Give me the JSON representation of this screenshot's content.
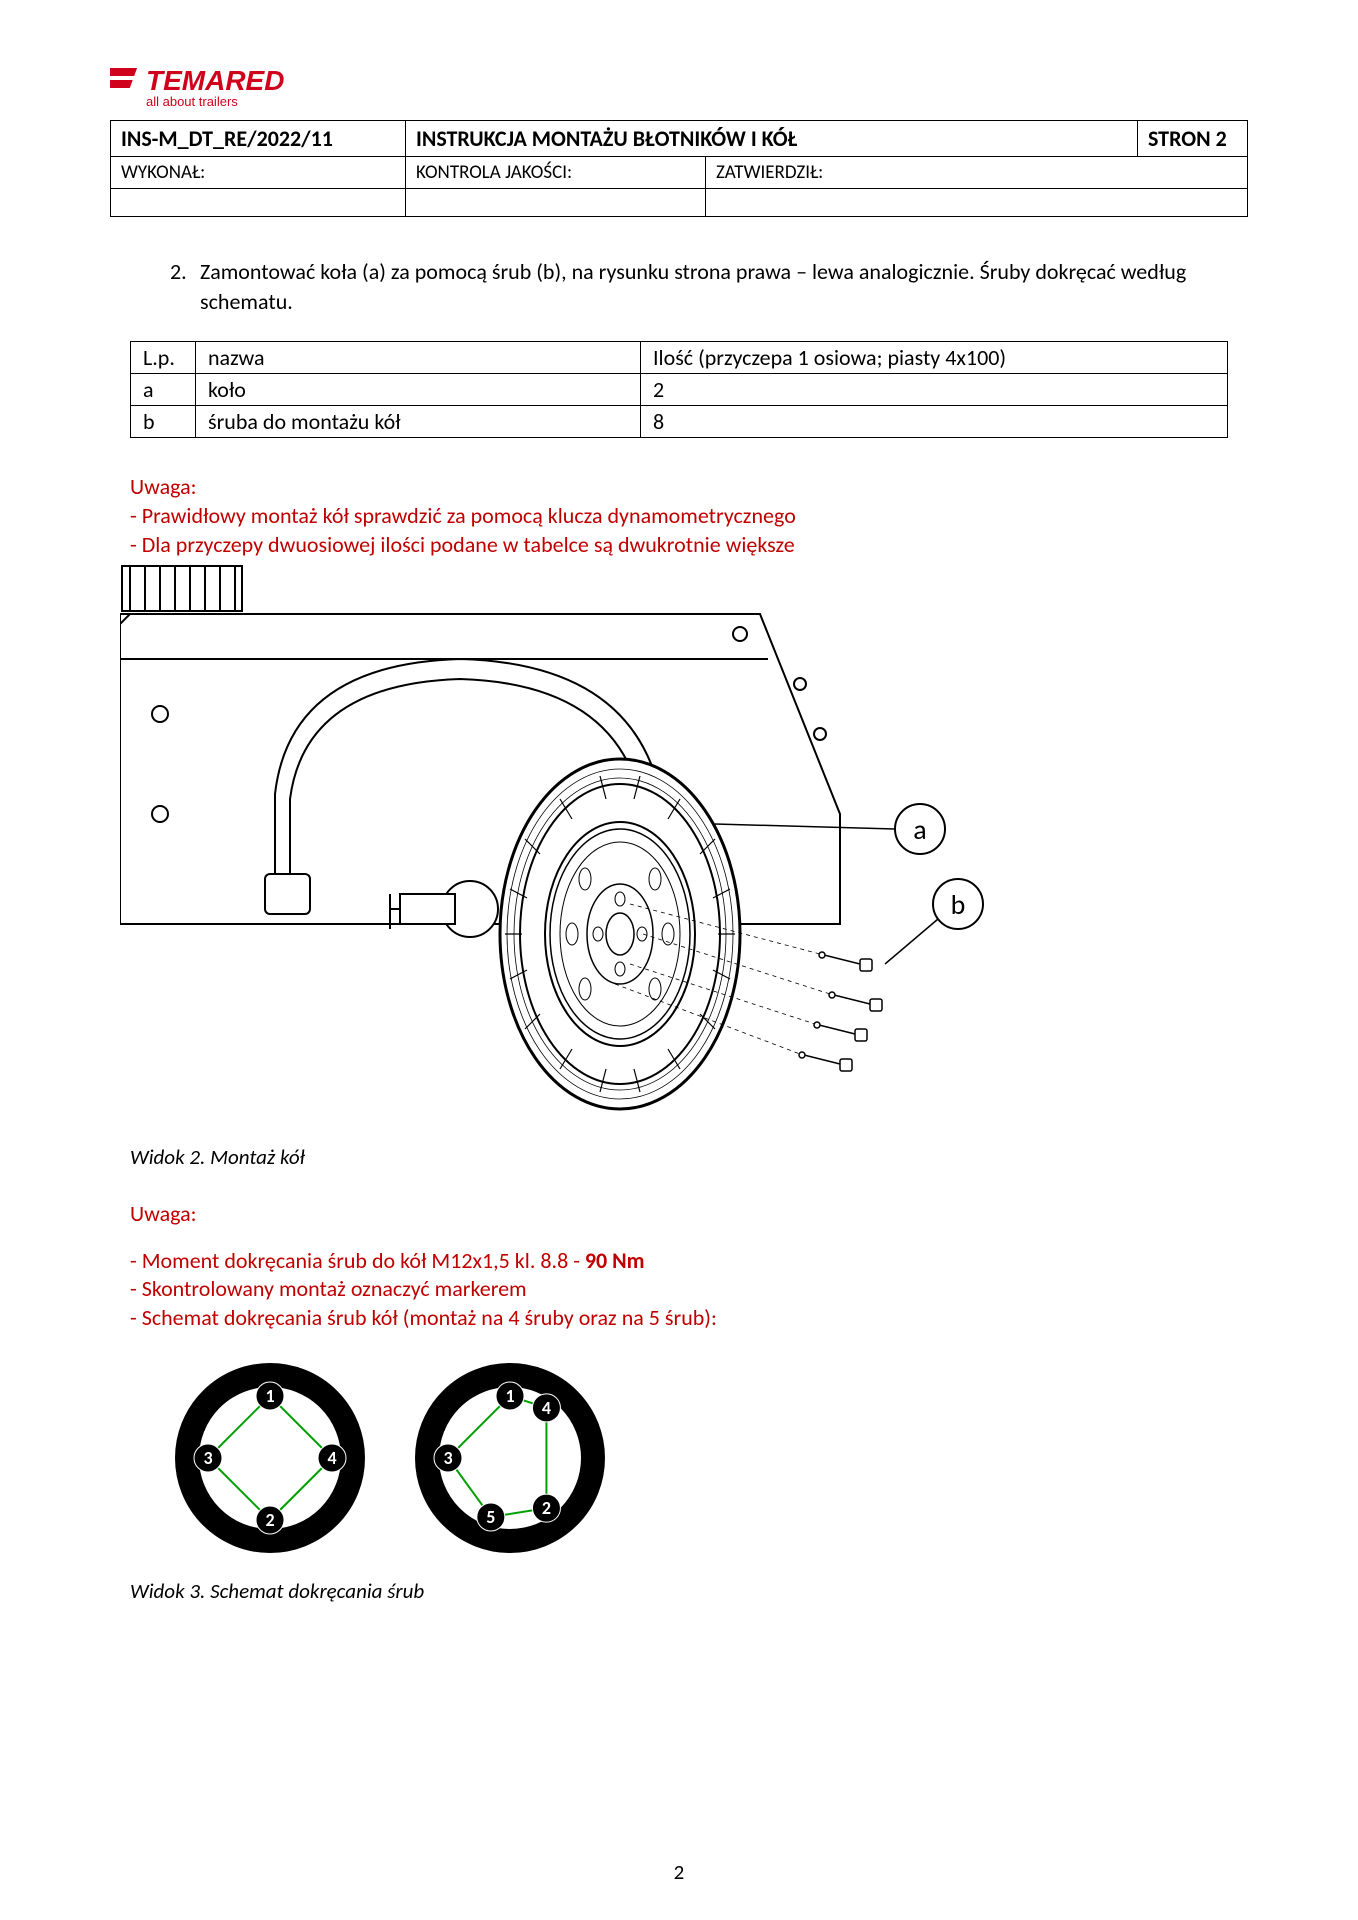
{
  "logo": {
    "brand": "TEMARED",
    "tagline": "all about trailers",
    "color": "#d0021b"
  },
  "header": {
    "doc_id": "INS-M_DT_RE/2022/11",
    "title": "INSTRUKCJA MONTAŻU BŁOTNIKÓW I KÓŁ",
    "page_count": "STRON 2",
    "row2": {
      "c1": "WYKONAŁ:",
      "c2": "KONTROLA JAKOŚCI:",
      "c3": "ZATWIERDZIŁ:"
    }
  },
  "step": {
    "num": "2.",
    "text": "Zamontować koła (a) za pomocą śrub (b), na rysunku strona prawa – lewa analogicznie. Śruby dokręcać według schematu."
  },
  "parts_table": {
    "header": {
      "c1": "L.p.",
      "c2": "nazwa",
      "c3": "Ilość (przyczepa 1 osiowa; piasty 4x100)"
    },
    "rows": [
      {
        "c1": "a",
        "c2": "koło",
        "c3": "2"
      },
      {
        "c1": "b",
        "c2": "śruba do montażu kół",
        "c3": "8"
      }
    ]
  },
  "warning1": {
    "title": "Uwaga:",
    "lines": [
      "- Prawidłowy montaż kół sprawdzić za pomocą klucza dynamometrycznego",
      "- Dla przyczepy dwuosiowej ilości podane w tabelce są dwukrotnie większe"
    ]
  },
  "fig1_caption": "Widok 2.  Montaż kół",
  "warning2": {
    "title": "Uwaga:",
    "line1_a": "- Moment dokręcania śrub do kół M12x1,5 kl. 8.8 -  ",
    "line1_b": "90 Nm",
    "line2": "- Skontrolowany montaż oznaczyć markerem",
    "line3": "- Schemat dokręcania śrub kół (montaż na 4 śruby oraz na 5 śrub):"
  },
  "fig2_caption": "Widok 3. Schemat dokręcania śrub",
  "callouts": {
    "a": "a",
    "b": "b"
  },
  "torque_diagrams": {
    "ring_outer_r": 95,
    "ring_inner_r": 73,
    "node_r": 14,
    "node_font": 18,
    "arrow_color": "#00a000",
    "node_fill": "#000000",
    "node_text": "#ffffff",
    "bolt_r": 62,
    "four": {
      "nodes": [
        "1",
        "2",
        "3",
        "4"
      ],
      "angles_deg": [
        90,
        270,
        180,
        0
      ],
      "sequence": [
        1,
        3,
        2,
        4,
        1
      ]
    },
    "five": {
      "nodes": [
        "1",
        "2",
        "3",
        "4",
        "5"
      ],
      "angles_deg": [
        90,
        306,
        180,
        54,
        252
      ],
      "sequence": [
        1,
        3,
        5,
        2,
        4,
        1
      ]
    }
  },
  "page_number": "2"
}
